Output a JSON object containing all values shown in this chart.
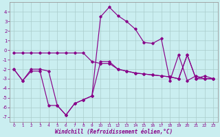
{
  "xlabel": "Windchill (Refroidissement éolien,°C)",
  "background_color": "#caeef0",
  "grid_color": "#aacccc",
  "line_color": "#880088",
  "x": [
    0,
    1,
    2,
    3,
    4,
    5,
    6,
    7,
    8,
    9,
    10,
    11,
    12,
    13,
    14,
    15,
    16,
    17,
    18,
    19,
    20,
    21,
    22,
    23
  ],
  "series1": [
    -2.0,
    -3.2,
    -2.0,
    -2.0,
    -2.2,
    -5.8,
    -6.8,
    -5.6,
    -5.2,
    -4.8,
    3.5,
    4.5,
    3.6,
    3.0,
    2.2,
    0.8,
    0.7,
    1.2,
    -3.2,
    -0.5,
    -3.2,
    -2.7,
    -3.0,
    -3.0
  ],
  "series2": [
    -0.3,
    -0.3,
    -0.3,
    -0.3,
    -0.3,
    -0.3,
    -0.3,
    -0.3,
    -0.3,
    -1.2,
    -1.4,
    -1.4,
    -2.0,
    -2.2,
    -2.4,
    -2.5,
    -2.6,
    -2.7,
    -2.8,
    -3.0,
    -0.5,
    -3.0,
    -3.0,
    -3.0
  ],
  "series3": [
    -2.0,
    -3.2,
    -2.2,
    -2.2,
    -5.8,
    -5.8,
    -6.8,
    -5.6,
    -5.2,
    -4.8,
    -1.2,
    -1.2,
    -2.0,
    -2.2,
    -2.4,
    -2.5,
    -2.6,
    -2.7,
    -2.8,
    -3.0,
    -0.5,
    -3.0,
    -2.7,
    -3.0
  ],
  "ylim": [
    -7.5,
    5.0
  ],
  "yticks": [
    -7,
    -6,
    -5,
    -4,
    -3,
    -2,
    -1,
    0,
    1,
    2,
    3,
    4
  ],
  "xlim": [
    -0.5,
    23.5
  ]
}
